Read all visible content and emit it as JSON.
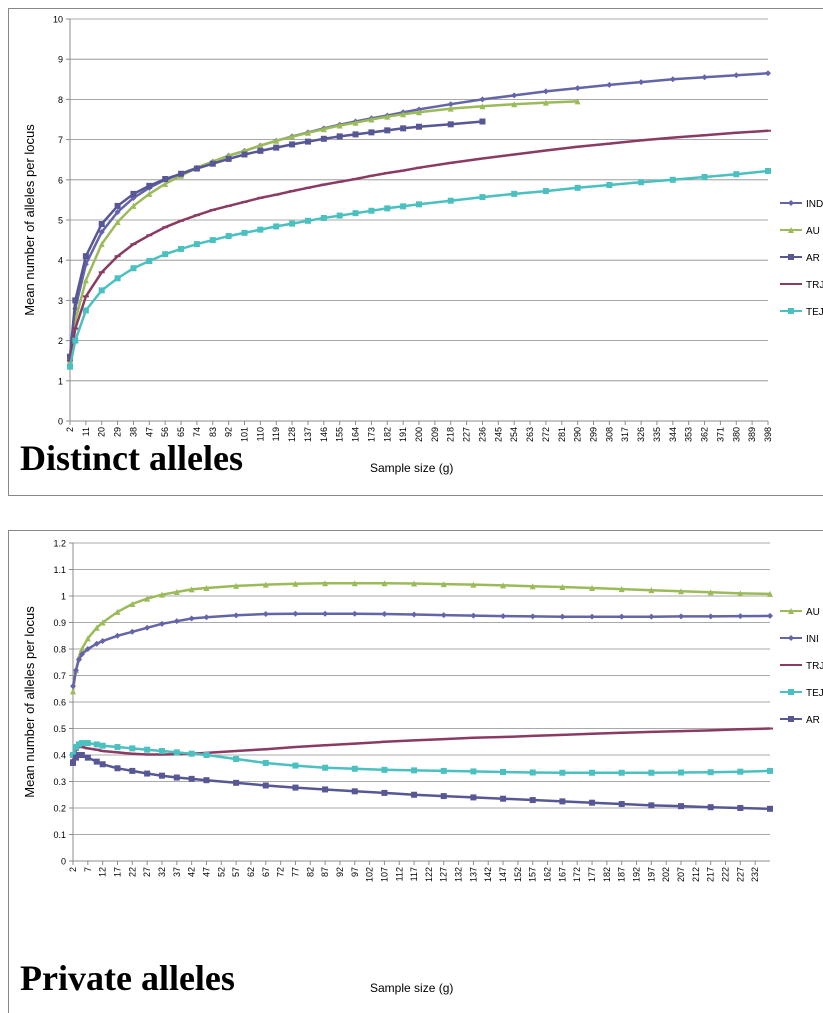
{
  "chart_data": [
    {
      "type": "line",
      "title": "Distinct alleles",
      "xlabel": "Sample size (g)",
      "ylabel": "Mean number of alleles per locus",
      "x": [
        2,
        5,
        11,
        20,
        29,
        38,
        47,
        56,
        65,
        74,
        83,
        92,
        101,
        110,
        119,
        128,
        137,
        146,
        155,
        164,
        173,
        182,
        191,
        200,
        218,
        236,
        254,
        272,
        290,
        308,
        326,
        344,
        362,
        380,
        398
      ],
      "xlim": [
        2,
        398
      ],
      "xticks": [
        2,
        11,
        20,
        29,
        38,
        47,
        56,
        65,
        74,
        83,
        92,
        101,
        110,
        119,
        128,
        137,
        146,
        155,
        164,
        173,
        182,
        191,
        200,
        209,
        218,
        227,
        236,
        245,
        254,
        263,
        272,
        281,
        290,
        299,
        308,
        317,
        326,
        335,
        344,
        353,
        362,
        371,
        380,
        389,
        398
      ],
      "ylim": [
        0,
        10
      ],
      "yticks": [
        0,
        1,
        2,
        3,
        4,
        5,
        6,
        7,
        8,
        9,
        10
      ],
      "grid": true,
      "series": [
        {
          "name": "IND",
          "color": "#6464a8",
          "marker": "diamond",
          "values": [
            1.6,
            2.8,
            3.9,
            4.7,
            5.2,
            5.55,
            5.8,
            6.0,
            6.15,
            6.3,
            6.45,
            6.6,
            6.72,
            6.85,
            6.97,
            7.08,
            7.18,
            7.28,
            7.37,
            7.45,
            7.53,
            7.6,
            7.68,
            7.75,
            7.88,
            8.0,
            8.1,
            8.2,
            8.28,
            8.36,
            8.43,
            8.5,
            8.55,
            8.6,
            8.65
          ]
        },
        {
          "name": "AU",
          "color": "#9bbb59",
          "marker": "triangle",
          "values": [
            1.5,
            2.5,
            3.5,
            4.4,
            4.95,
            5.35,
            5.65,
            5.9,
            6.1,
            6.3,
            6.45,
            6.6,
            6.72,
            6.85,
            6.97,
            7.07,
            7.17,
            7.26,
            7.35,
            7.42,
            7.5,
            7.57,
            7.63,
            7.68,
            7.77,
            7.83,
            7.88,
            7.92,
            7.95,
            null,
            null,
            null,
            null,
            null,
            null
          ]
        },
        {
          "name": "AR",
          "color": "#575796",
          "marker": "square",
          "values": [
            1.6,
            3.0,
            4.1,
            4.9,
            5.35,
            5.65,
            5.85,
            6.02,
            6.15,
            6.28,
            6.4,
            6.52,
            6.63,
            6.72,
            6.8,
            6.88,
            6.95,
            7.02,
            7.08,
            7.13,
            7.18,
            7.23,
            7.28,
            7.32,
            7.38,
            7.45,
            null,
            null,
            null,
            null,
            null,
            null,
            null,
            null,
            null
          ]
        },
        {
          "name": "TRJ",
          "color": "#8b3a62",
          "marker": "dash",
          "values": [
            1.5,
            2.3,
            3.1,
            3.7,
            4.1,
            4.4,
            4.62,
            4.82,
            4.98,
            5.12,
            5.25,
            5.35,
            5.45,
            5.55,
            5.63,
            5.72,
            5.8,
            5.88,
            5.95,
            6.02,
            6.1,
            6.17,
            6.23,
            6.3,
            6.42,
            6.53,
            6.63,
            6.73,
            6.82,
            6.9,
            6.98,
            7.05,
            7.11,
            7.17,
            7.22
          ]
        },
        {
          "name": "TEJ",
          "color": "#4bc0c0",
          "marker": "square",
          "values": [
            1.35,
            2.0,
            2.75,
            3.25,
            3.55,
            3.8,
            3.98,
            4.15,
            4.28,
            4.4,
            4.5,
            4.6,
            4.68,
            4.76,
            4.84,
            4.91,
            4.98,
            5.05,
            5.11,
            5.17,
            5.23,
            5.29,
            5.34,
            5.39,
            5.48,
            5.57,
            5.65,
            5.72,
            5.8,
            5.87,
            5.94,
            6.0,
            6.07,
            6.14,
            6.22
          ]
        }
      ]
    },
    {
      "type": "line",
      "title": "Private alleles",
      "xlabel": "Sample size (g)",
      "ylabel": "Mean number of alleles per locus",
      "x": [
        2,
        3,
        4,
        5,
        7,
        10,
        12,
        17,
        22,
        27,
        32,
        37,
        42,
        47,
        57,
        67,
        77,
        87,
        97,
        107,
        117,
        127,
        137,
        147,
        157,
        167,
        177,
        187,
        197,
        207,
        217,
        227,
        237
      ],
      "xlim": [
        2,
        237
      ],
      "xticks": [
        2,
        7,
        12,
        17,
        22,
        27,
        32,
        37,
        42,
        47,
        52,
        57,
        62,
        67,
        72,
        77,
        82,
        87,
        92,
        97,
        102,
        107,
        112,
        117,
        122,
        127,
        132,
        137,
        142,
        147,
        152,
        157,
        162,
        167,
        172,
        177,
        182,
        187,
        192,
        197,
        202,
        207,
        212,
        217,
        222,
        227,
        232
      ],
      "ylim": [
        0,
        1.2
      ],
      "yticks": [
        0,
        0.1,
        0.2,
        0.3,
        0.4,
        0.5,
        0.6,
        0.7,
        0.8,
        0.9,
        1,
        1.1,
        1.2
      ],
      "grid": true,
      "series": [
        {
          "name": "AU",
          "color": "#9bbb59",
          "marker": "triangle",
          "values": [
            0.64,
            0.72,
            0.77,
            0.8,
            0.84,
            0.88,
            0.9,
            0.94,
            0.97,
            0.99,
            1.005,
            1.015,
            1.025,
            1.03,
            1.038,
            1.043,
            1.046,
            1.048,
            1.048,
            1.048,
            1.047,
            1.045,
            1.043,
            1.04,
            1.037,
            1.034,
            1.03,
            1.026,
            1.022,
            1.018,
            1.014,
            1.01,
            1.008
          ]
        },
        {
          "name": "INI",
          "color": "#6464a8",
          "marker": "diamond",
          "values": [
            0.66,
            0.72,
            0.76,
            0.78,
            0.8,
            0.82,
            0.83,
            0.85,
            0.865,
            0.88,
            0.895,
            0.905,
            0.915,
            0.92,
            0.927,
            0.932,
            0.933,
            0.933,
            0.933,
            0.932,
            0.93,
            0.928,
            0.926,
            0.924,
            0.923,
            0.922,
            0.922,
            0.922,
            0.922,
            0.923,
            0.923,
            0.924,
            0.925
          ]
        },
        {
          "name": "TRJ",
          "color": "#8b3a62",
          "marker": "dash",
          "values": [
            0.38,
            0.42,
            0.43,
            0.43,
            0.425,
            0.42,
            0.415,
            0.41,
            0.405,
            0.402,
            0.402,
            0.403,
            0.405,
            0.408,
            0.415,
            0.422,
            0.43,
            0.437,
            0.443,
            0.45,
            0.455,
            0.46,
            0.465,
            0.468,
            0.472,
            0.476,
            0.48,
            0.484,
            0.487,
            0.49,
            0.493,
            0.497,
            0.5
          ]
        },
        {
          "name": "TEJ",
          "color": "#4bc0c0",
          "marker": "square",
          "values": [
            0.4,
            0.43,
            0.44,
            0.445,
            0.445,
            0.44,
            0.435,
            0.43,
            0.425,
            0.42,
            0.415,
            0.41,
            0.405,
            0.4,
            0.385,
            0.37,
            0.36,
            0.352,
            0.348,
            0.344,
            0.342,
            0.34,
            0.338,
            0.336,
            0.334,
            0.333,
            0.333,
            0.333,
            0.333,
            0.334,
            0.335,
            0.337,
            0.34
          ]
        },
        {
          "name": "AR",
          "color": "#575796",
          "marker": "square",
          "values": [
            0.37,
            0.39,
            0.4,
            0.4,
            0.39,
            0.375,
            0.365,
            0.35,
            0.34,
            0.33,
            0.322,
            0.315,
            0.31,
            0.305,
            0.295,
            0.285,
            0.277,
            0.27,
            0.263,
            0.257,
            0.25,
            0.245,
            0.24,
            0.235,
            0.23,
            0.225,
            0.22,
            0.215,
            0.21,
            0.207,
            0.203,
            0.2,
            0.197
          ]
        }
      ]
    }
  ]
}
